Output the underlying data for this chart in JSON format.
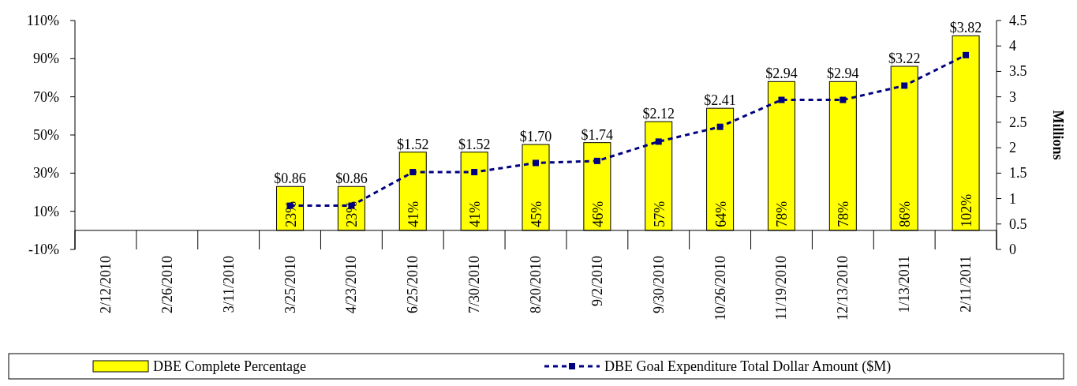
{
  "chart_data": {
    "type": "bar",
    "categories": [
      "2/12/2010",
      "2/26/2010",
      "3/11/2010",
      "3/25/2010",
      "4/23/2010",
      "6/25/2010",
      "7/30/2010",
      "8/20/2010",
      "9/2/2010",
      "9/30/2010",
      "10/26/2010",
      "11/19/2010",
      "12/13/2010",
      "1/13/2011",
      "2/11/2011"
    ],
    "series": [
      {
        "name": "DBE Complete Percentage",
        "color": "#ffff00",
        "values": [
          null,
          null,
          null,
          23,
          23,
          41,
          41,
          45,
          46,
          57,
          64,
          78,
          78,
          86,
          102
        ],
        "value_labels": [
          null,
          null,
          null,
          "23%",
          "23%",
          "41%",
          "41%",
          "45%",
          "46%",
          "57%",
          "64%",
          "78%",
          "78%",
          "86%",
          "102%"
        ]
      },
      {
        "name": "DBE Goal Expenditure Total Dollar Amount ($M)",
        "type": "line",
        "axis": "y2",
        "color": "#000080",
        "marker": "square",
        "line_style": "dashed",
        "values": [
          null,
          null,
          null,
          0.86,
          0.86,
          1.52,
          1.52,
          1.7,
          1.74,
          2.12,
          2.41,
          2.94,
          2.94,
          3.22,
          3.82
        ],
        "value_labels": [
          null,
          null,
          null,
          "$0.86",
          "$0.86",
          "$1.52",
          "$1.52",
          "$1.70",
          "$1.74",
          "$2.12",
          "$2.41",
          "$2.94",
          "$2.94",
          "$3.22",
          "$3.82"
        ]
      }
    ],
    "ylim": [
      -10,
      110
    ],
    "yticks": [
      {
        "value": -10,
        "label": "-10%"
      },
      {
        "value": 10,
        "label": "10%"
      },
      {
        "value": 30,
        "label": "30%"
      },
      {
        "value": 50,
        "label": "50%"
      },
      {
        "value": 70,
        "label": "70%"
      },
      {
        "value": 90,
        "label": "90%"
      },
      {
        "value": 110,
        "label": "110%"
      }
    ],
    "y2lim": [
      0,
      4.5
    ],
    "y2ticks": [
      0,
      0.5,
      1,
      1.5,
      2,
      2.5,
      3,
      3.5,
      4,
      4.5
    ],
    "y2label": "Millions",
    "legend": "bottom",
    "grid": false
  }
}
